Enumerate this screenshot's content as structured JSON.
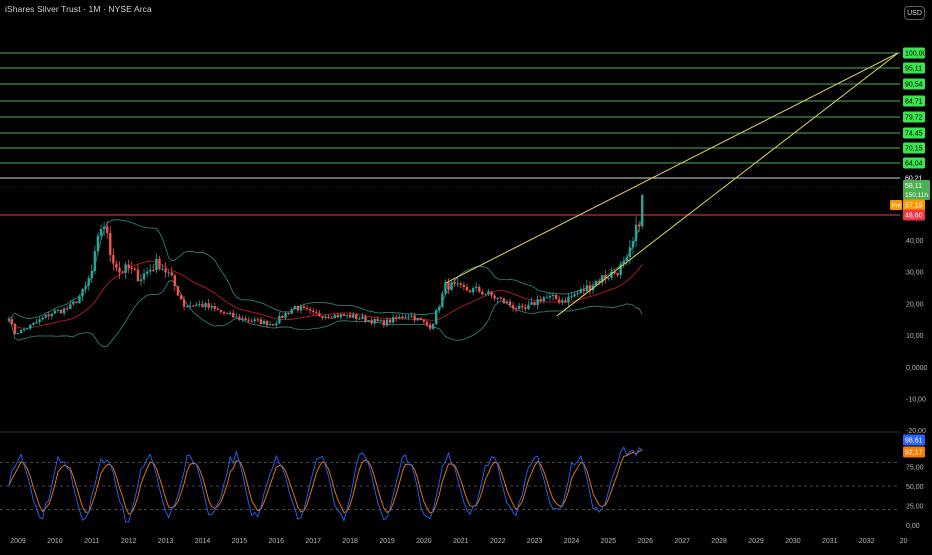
{
  "header": {
    "title": "iShares Silver Trust · 1M · NYSE Arca",
    "currency_button": "USD"
  },
  "colors": {
    "background": "#000000",
    "level_line": "#4caf50",
    "level_label_bg": "#39e64f",
    "trend_line": "#e0d65a",
    "red_level": "#f23645",
    "candle_up": "#26a69a",
    "candle_down": "#ef5350",
    "band": "#2e7d6e",
    "ma": "#b71c1c",
    "rsi_fast": "#2962ff",
    "rsi_slow": "#f57c00",
    "axis_text": "#b2b5be"
  },
  "chart_data": [
    {
      "type": "candlestick",
      "title": "iShares Silver Trust · 1M · NYSE Arca",
      "y_ticks": [
        "-20,00",
        "-10,00",
        "0,0000",
        "10,00",
        "20,00",
        "30,00",
        "40,00"
      ],
      "x_ticks": [
        "2009",
        "2010",
        "2011",
        "2012",
        "2013",
        "2014",
        "2015",
        "2016",
        "2017",
        "2018",
        "2019",
        "2020",
        "2021",
        "2022",
        "2023",
        "2024",
        "2025",
        "2026",
        "2027",
        "2028",
        "2029",
        "2030",
        "2031",
        "2032",
        "20"
      ],
      "levels": [
        100.0,
        95.11,
        90.54,
        84.71,
        79.72,
        74.45,
        70.15,
        64.04
      ],
      "level_labels": [
        "100,00",
        "95,11",
        "90,54",
        "84,71",
        "79,72",
        "74,45",
        "70,15",
        "64,04"
      ],
      "white_level": {
        "value": 60.21,
        "label": "60,21"
      },
      "last_price": {
        "value": 58.11,
        "label": "58,11",
        "volume_label": "150,11h"
      },
      "pre_market": {
        "tag": "Pré",
        "value": 57.19,
        "label": "57,19"
      },
      "red_level": {
        "value": 48.6,
        "label": "48,60"
      },
      "monthly_close_keypoints": [
        {
          "t": 2008.75,
          "v": 16
        },
        {
          "t": 2008.9,
          "v": 10.5
        },
        {
          "t": 2009.2,
          "v": 12
        },
        {
          "t": 2009.5,
          "v": 14
        },
        {
          "t": 2009.9,
          "v": 17
        },
        {
          "t": 2010.4,
          "v": 18.5
        },
        {
          "t": 2010.8,
          "v": 24
        },
        {
          "t": 2011.0,
          "v": 30
        },
        {
          "t": 2011.3,
          "v": 47
        },
        {
          "t": 2011.5,
          "v": 36
        },
        {
          "t": 2011.75,
          "v": 30
        },
        {
          "t": 2012.0,
          "v": 31
        },
        {
          "t": 2012.3,
          "v": 28
        },
        {
          "t": 2012.8,
          "v": 33
        },
        {
          "t": 2013.1,
          "v": 29
        },
        {
          "t": 2013.5,
          "v": 19.5
        },
        {
          "t": 2014.0,
          "v": 19.5
        },
        {
          "t": 2014.9,
          "v": 15.5
        },
        {
          "t": 2015.9,
          "v": 13.5
        },
        {
          "t": 2016.5,
          "v": 19
        },
        {
          "t": 2017.0,
          "v": 16.5
        },
        {
          "t": 2018.0,
          "v": 16
        },
        {
          "t": 2018.9,
          "v": 13.8
        },
        {
          "t": 2019.6,
          "v": 16.5
        },
        {
          "t": 2020.2,
          "v": 12.5
        },
        {
          "t": 2020.6,
          "v": 26
        },
        {
          "t": 2021.0,
          "v": 24.5
        },
        {
          "t": 2021.5,
          "v": 24
        },
        {
          "t": 2022.0,
          "v": 21.5
        },
        {
          "t": 2022.7,
          "v": 17.5
        },
        {
          "t": 2023.2,
          "v": 22
        },
        {
          "t": 2023.8,
          "v": 21
        },
        {
          "t": 2024.3,
          "v": 24
        },
        {
          "t": 2024.8,
          "v": 28
        },
        {
          "t": 2025.2,
          "v": 30
        },
        {
          "t": 2025.5,
          "v": 33
        },
        {
          "t": 2025.7,
          "v": 40
        },
        {
          "t": 2025.85,
          "v": 48
        },
        {
          "t": 2025.95,
          "v": 58.11
        }
      ],
      "trend_lines": [
        {
          "name": "upper-channel",
          "from": {
            "t": 2020.6,
            "v": 26.5
          },
          "to": {
            "t": 2032.85,
            "v": 100
          }
        },
        {
          "name": "lower-channel",
          "from": {
            "t": 2023.6,
            "v": 16
          },
          "to": {
            "t": 2032.85,
            "v": 100
          }
        }
      ]
    },
    {
      "type": "line",
      "name": "stochastic-rsi",
      "y_ticks": [
        "0,00",
        "25,00",
        "50,00",
        "75,00"
      ],
      "last_values": [
        {
          "series": "fast",
          "label": "98,61"
        },
        {
          "series": "slow",
          "label": "92,17"
        }
      ],
      "guide_levels": [
        80,
        50,
        20
      ]
    }
  ]
}
